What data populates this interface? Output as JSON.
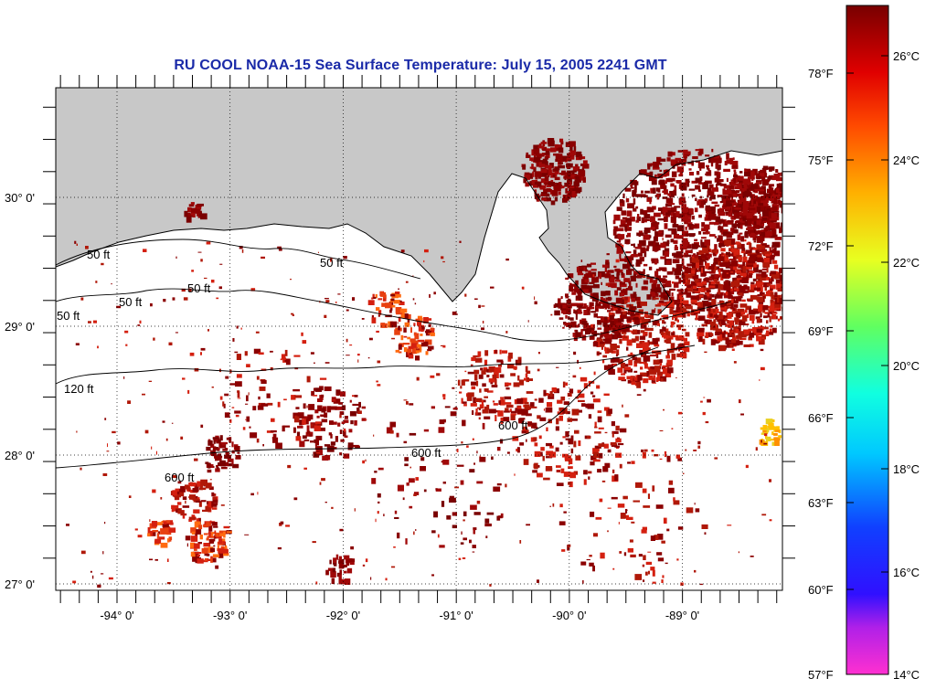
{
  "title": "RU COOL  NOAA-15  Sea Surface Temperature:  July 15, 2005 2241 GMT",
  "map": {
    "lon_ticks": [
      {
        "lon": -94,
        "label": "-94° 0'"
      },
      {
        "lon": -93,
        "label": "-93° 0'"
      },
      {
        "lon": -92,
        "label": "-92° 0'"
      },
      {
        "lon": -91,
        "label": "-91° 0'"
      },
      {
        "lon": -90,
        "label": "-90° 0'"
      },
      {
        "lon": -89,
        "label": "-89° 0'"
      }
    ],
    "lat_ticks": [
      {
        "lat": 30,
        "label": "30° 0'"
      },
      {
        "lat": 29,
        "label": "29° 0'"
      },
      {
        "lat": 28,
        "label": "28° 0'"
      },
      {
        "lat": 27,
        "label": "27° 0'"
      }
    ],
    "contour_labels": [
      "50 ft",
      "50 ft",
      "50 ft",
      "50 ft",
      "50 ft",
      "120 ft",
      "600 ft",
      "600 ft",
      "600 ft"
    ],
    "colors": {
      "land": "#c8c8c8",
      "sst_hot": "#8b0000",
      "sst_warm": "#d42010",
      "sst_orange": "#ff6a10"
    }
  },
  "colorbar": {
    "fahrenheit_labels": [
      "78°F",
      "75°F",
      "72°F",
      "69°F",
      "66°F",
      "63°F",
      "60°F",
      "57°F"
    ],
    "celsius_labels": [
      "26°C",
      "24°C",
      "22°C",
      "20°C",
      "18°C",
      "16°C",
      "14°C"
    ]
  }
}
